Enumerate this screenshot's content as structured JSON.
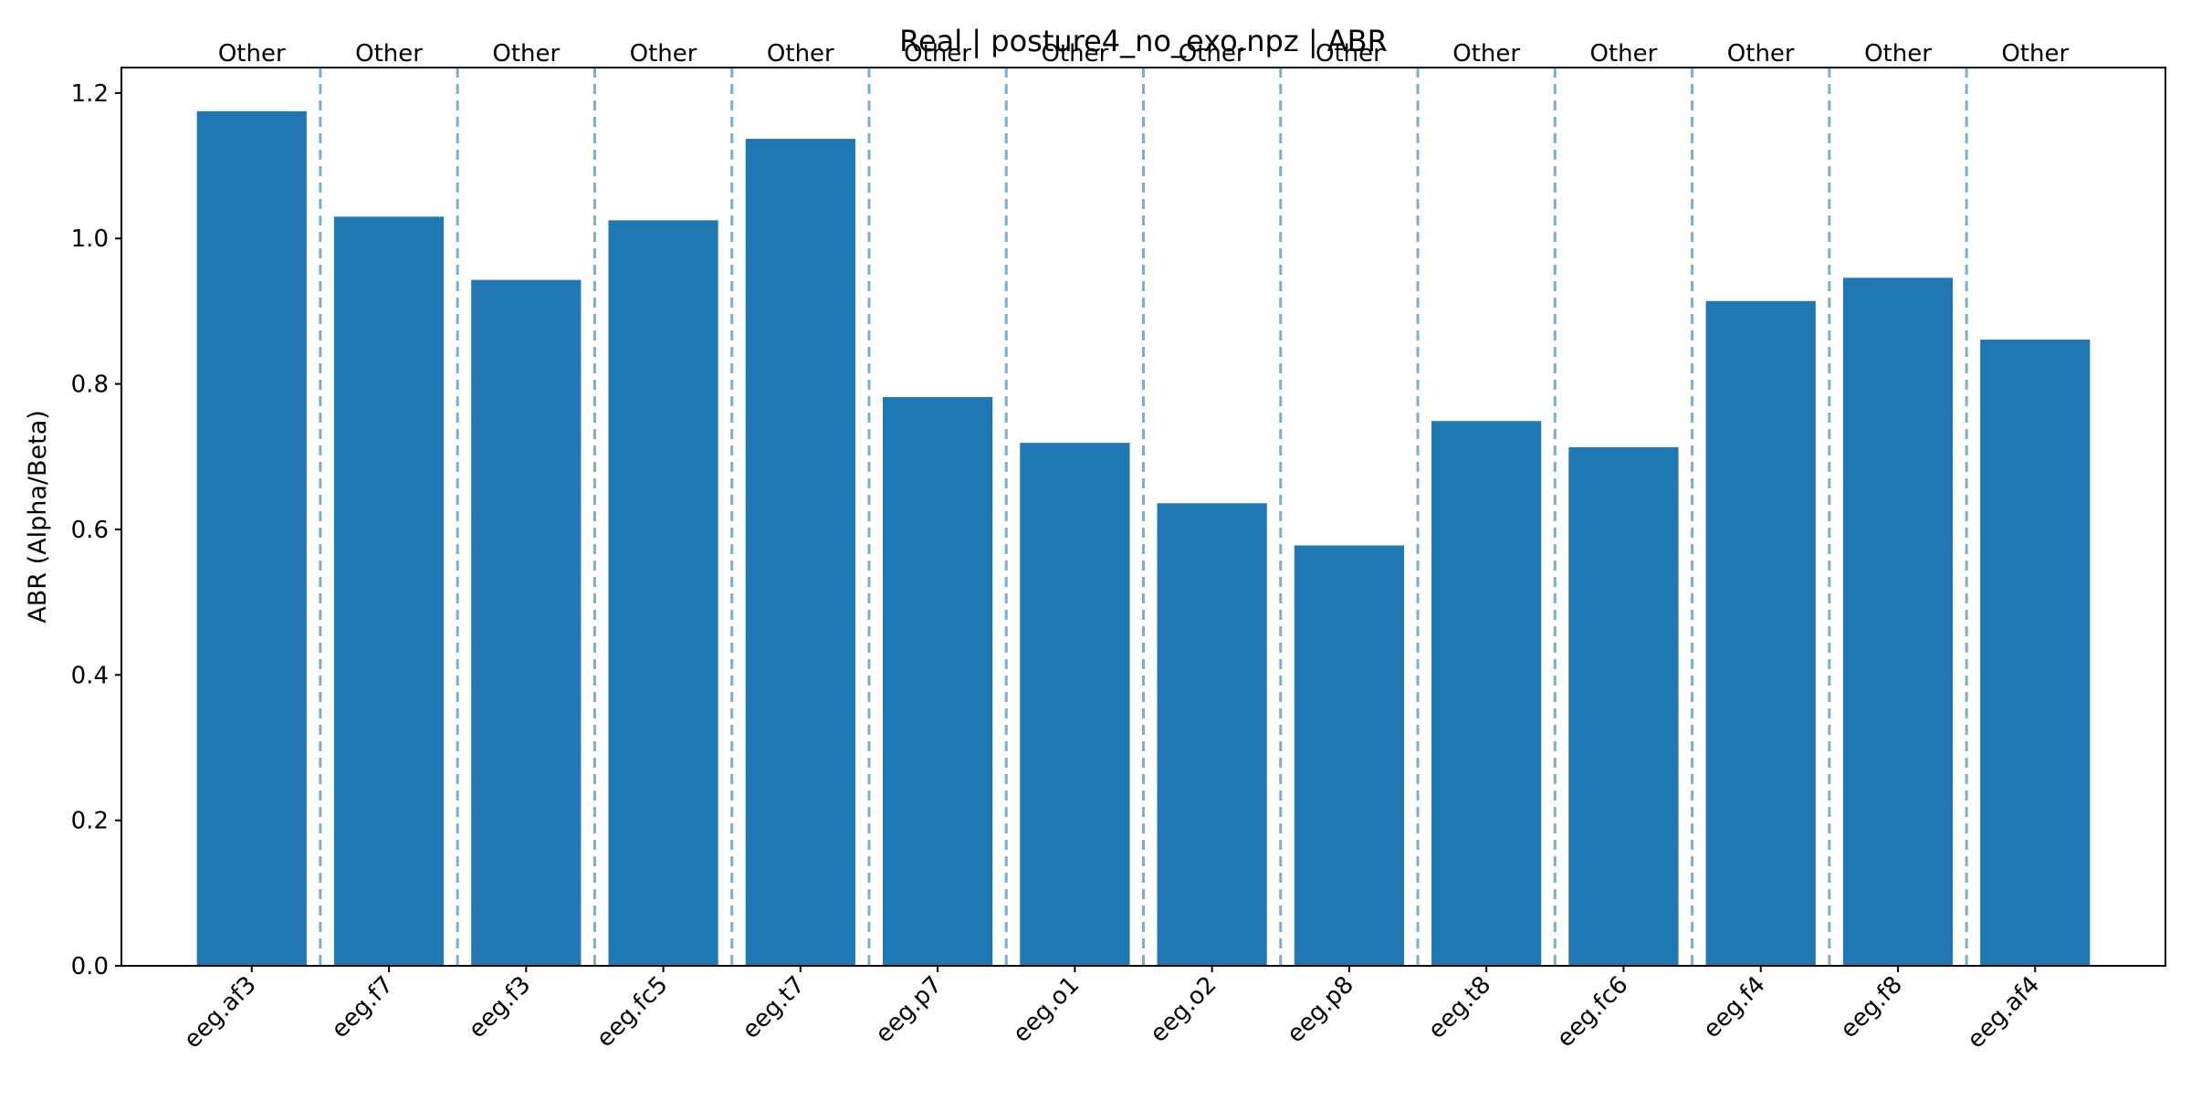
{
  "chart_data": {
    "type": "bar",
    "title": "Real | posture4_no_exo.npz | ABR",
    "xlabel": "",
    "ylabel": "ABR (Alpha/Beta)",
    "categories": [
      "eeg.af3",
      "eeg.f7",
      "eeg.f3",
      "eeg.fc5",
      "eeg.t7",
      "eeg.p7",
      "eeg.o1",
      "eeg.o2",
      "eeg.p8",
      "eeg.t8",
      "eeg.fc6",
      "eeg.f4",
      "eeg.f8",
      "eeg.af4"
    ],
    "values": [
      1.175,
      1.03,
      0.943,
      1.025,
      1.137,
      0.782,
      0.719,
      0.636,
      0.578,
      0.749,
      0.713,
      0.914,
      0.946,
      0.861
    ],
    "group_labels": [
      "Other",
      "Other",
      "Other",
      "Other",
      "Other",
      "Other",
      "Other",
      "Other",
      "Other",
      "Other",
      "Other",
      "Other",
      "Other",
      "Other"
    ],
    "ylim": [
      0,
      1.235
    ],
    "yticks": [
      0.0,
      0.2,
      0.4,
      0.6,
      0.8,
      1.0,
      1.2
    ],
    "ytick_labels": [
      "0.0",
      "0.2",
      "0.4",
      "0.6",
      "0.8",
      "1.0",
      "1.2"
    ],
    "grid": false,
    "group_separators": "dashed vertical lines between bars",
    "colors": {
      "bar": "#1f77b4",
      "separator": "#1f77b4"
    }
  }
}
